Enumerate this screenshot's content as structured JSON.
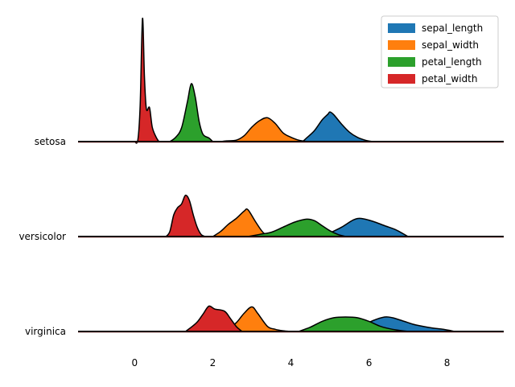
{
  "chart_data": {
    "type": "area",
    "title": "",
    "xlabel": "",
    "ylabel": "",
    "xlim": [
      -1.45,
      9.45
    ],
    "xticks": [
      0,
      2,
      4,
      6,
      8
    ],
    "grid": false,
    "legend_position": "top-right",
    "categories": [
      "setosa",
      "versicolor",
      "virginica"
    ],
    "series": [
      {
        "name": "sepal_length",
        "color": "#1f77b4"
      },
      {
        "name": "sepal_width",
        "color": "#ff7f0e"
      },
      {
        "name": "petal_length",
        "color": "#2ca02c"
      },
      {
        "name": "petal_width",
        "color": "#d62728"
      }
    ],
    "groups": [
      {
        "name": "setosa",
        "densities": {
          "sepal_length": [
            [
              4.3,
              0.0
            ],
            [
              4.4,
              0.05
            ],
            [
              4.6,
              0.15
            ],
            [
              4.8,
              0.3
            ],
            [
              4.95,
              0.38
            ],
            [
              5.0,
              0.41
            ],
            [
              5.1,
              0.37
            ],
            [
              5.3,
              0.24
            ],
            [
              5.5,
              0.13
            ],
            [
              5.7,
              0.06
            ],
            [
              5.9,
              0.02
            ],
            [
              6.1,
              0.0
            ]
          ],
          "sepal_width": [
            [
              2.2,
              0.0
            ],
            [
              2.35,
              0.01
            ],
            [
              2.6,
              0.02
            ],
            [
              2.8,
              0.08
            ],
            [
              3.0,
              0.2
            ],
            [
              3.2,
              0.29
            ],
            [
              3.4,
              0.33
            ],
            [
              3.6,
              0.25
            ],
            [
              3.8,
              0.12
            ],
            [
              4.0,
              0.06
            ],
            [
              4.2,
              0.02
            ],
            [
              4.45,
              0.0
            ]
          ],
          "petal_length": [
            [
              0.9,
              0.0
            ],
            [
              1.05,
              0.06
            ],
            [
              1.2,
              0.19
            ],
            [
              1.35,
              0.55
            ],
            [
              1.45,
              0.8
            ],
            [
              1.55,
              0.62
            ],
            [
              1.65,
              0.28
            ],
            [
              1.75,
              0.1
            ],
            [
              1.9,
              0.05
            ],
            [
              2.0,
              0.0
            ]
          ],
          "petal_width": [
            [
              0.0,
              0.0
            ],
            [
              0.08,
              0.02
            ],
            [
              0.14,
              0.5
            ],
            [
              0.2,
              1.7
            ],
            [
              0.25,
              0.9
            ],
            [
              0.3,
              0.45
            ],
            [
              0.38,
              0.47
            ],
            [
              0.45,
              0.2
            ],
            [
              0.55,
              0.06
            ],
            [
              0.62,
              0.0
            ]
          ]
        }
      },
      {
        "name": "versicolor",
        "densities": {
          "sepal_length": [
            [
              4.8,
              0.0
            ],
            [
              5.0,
              0.05
            ],
            [
              5.3,
              0.13
            ],
            [
              5.6,
              0.23
            ],
            [
              5.8,
              0.25
            ],
            [
              6.1,
              0.21
            ],
            [
              6.4,
              0.15
            ],
            [
              6.7,
              0.09
            ],
            [
              7.0,
              0.0
            ]
          ],
          "sepal_width": [
            [
              2.0,
              0.0
            ],
            [
              2.2,
              0.07
            ],
            [
              2.4,
              0.17
            ],
            [
              2.6,
              0.25
            ],
            [
              2.8,
              0.35
            ],
            [
              2.9,
              0.37
            ],
            [
              3.1,
              0.2
            ],
            [
              3.3,
              0.05
            ],
            [
              3.5,
              0.0
            ]
          ],
          "petal_length": [
            [
              2.9,
              0.0
            ],
            [
              3.2,
              0.03
            ],
            [
              3.5,
              0.06
            ],
            [
              3.8,
              0.13
            ],
            [
              4.1,
              0.2
            ],
            [
              4.4,
              0.24
            ],
            [
              4.6,
              0.22
            ],
            [
              4.8,
              0.15
            ],
            [
              5.0,
              0.08
            ],
            [
              5.2,
              0.03
            ],
            [
              5.4,
              0.0
            ]
          ],
          "petal_width": [
            [
              0.8,
              0.0
            ],
            [
              0.9,
              0.07
            ],
            [
              1.0,
              0.3
            ],
            [
              1.1,
              0.4
            ],
            [
              1.2,
              0.45
            ],
            [
              1.3,
              0.57
            ],
            [
              1.4,
              0.5
            ],
            [
              1.5,
              0.3
            ],
            [
              1.6,
              0.13
            ],
            [
              1.7,
              0.03
            ],
            [
              1.8,
              0.0
            ]
          ]
        }
      },
      {
        "name": "virginica",
        "densities": {
          "sepal_length": [
            [
              5.5,
              0.0
            ],
            [
              5.8,
              0.07
            ],
            [
              6.1,
              0.15
            ],
            [
              6.4,
              0.2
            ],
            [
              6.6,
              0.19
            ],
            [
              6.9,
              0.14
            ],
            [
              7.2,
              0.09
            ],
            [
              7.6,
              0.05
            ],
            [
              7.9,
              0.03
            ],
            [
              8.2,
              0.0
            ]
          ],
          "sepal_width": [
            [
              2.2,
              0.0
            ],
            [
              2.4,
              0.04
            ],
            [
              2.6,
              0.12
            ],
            [
              2.8,
              0.25
            ],
            [
              3.0,
              0.34
            ],
            [
              3.15,
              0.25
            ],
            [
              3.4,
              0.07
            ],
            [
              3.6,
              0.03
            ],
            [
              3.8,
              0.01
            ],
            [
              4.0,
              0.0
            ]
          ],
          "petal_length": [
            [
              4.2,
              0.0
            ],
            [
              4.5,
              0.06
            ],
            [
              4.8,
              0.14
            ],
            [
              5.1,
              0.19
            ],
            [
              5.4,
              0.2
            ],
            [
              5.7,
              0.19
            ],
            [
              6.0,
              0.14
            ],
            [
              6.3,
              0.07
            ],
            [
              6.6,
              0.03
            ],
            [
              7.0,
              0.0
            ]
          ],
          "petal_width": [
            [
              1.3,
              0.0
            ],
            [
              1.45,
              0.06
            ],
            [
              1.6,
              0.13
            ],
            [
              1.75,
              0.24
            ],
            [
              1.9,
              0.35
            ],
            [
              2.05,
              0.31
            ],
            [
              2.3,
              0.28
            ],
            [
              2.45,
              0.18
            ],
            [
              2.6,
              0.07
            ],
            [
              2.75,
              0.0
            ]
          ]
        }
      }
    ]
  }
}
